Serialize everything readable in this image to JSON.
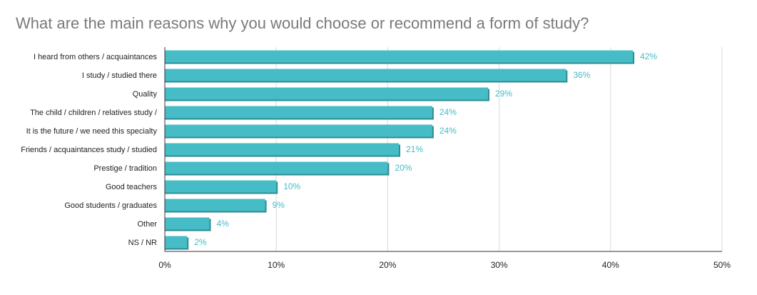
{
  "title": "What are the main reasons why you would choose or recommend a form of study?",
  "chart_data": {
    "type": "bar",
    "orientation": "horizontal",
    "title": "What are the main reasons why you would choose or recommend a form of study?",
    "categories": [
      "I heard from others / acquaintances",
      "I study / studied there",
      "Quality",
      "The child / children / relatives study /",
      "It is the future / we need this specialty",
      "Friends / acquaintances study / studied",
      "Prestige / tradition",
      "Good teachers",
      "Good students / graduates",
      "Other",
      "NS / NR"
    ],
    "values": [
      42,
      36,
      29,
      24,
      24,
      21,
      20,
      10,
      9,
      4,
      2
    ],
    "value_labels": [
      "42%",
      "36%",
      "29%",
      "24%",
      "24%",
      "21%",
      "20%",
      "10%",
      "9%",
      "4%",
      "2%"
    ],
    "xlim": [
      0,
      50
    ],
    "xticks": [
      0,
      10,
      20,
      30,
      40,
      50
    ],
    "xtick_labels": [
      "0%",
      "10%",
      "20%",
      "30%",
      "40%",
      "50%"
    ],
    "grid": true,
    "colors": {
      "bar": "#45BCC6",
      "bar_shadow": "#2E8C94",
      "data_label": "#45BCC6",
      "grid": "#d9d9d9",
      "axis": "#333333",
      "title": "#7a7a7a"
    }
  }
}
